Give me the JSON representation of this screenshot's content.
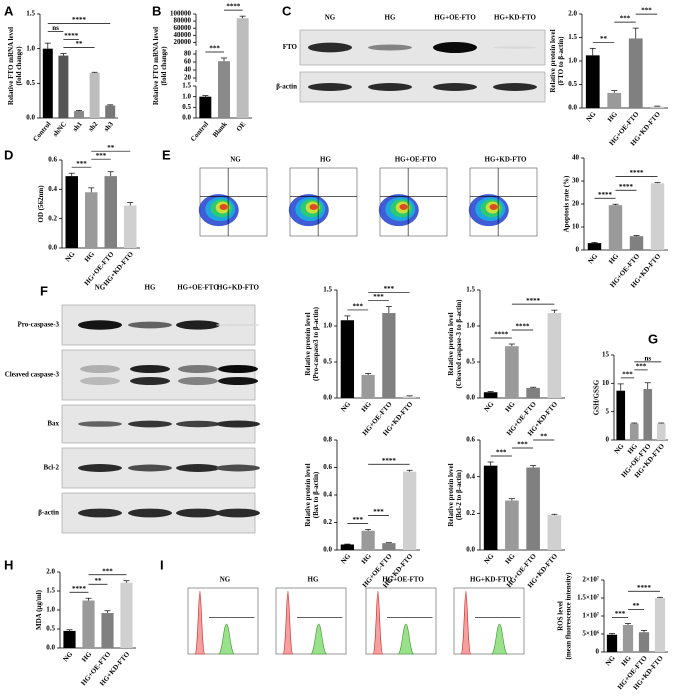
{
  "panel_labels": [
    "A",
    "B",
    "C",
    "D",
    "E",
    "F",
    "G",
    "H",
    "I"
  ],
  "blots": [
    {
      "columns": [
        "NG",
        "HG",
        "HG+OE-FTO",
        "HG+KD-FTO"
      ],
      "rows": [
        "FTO",
        "β-actin"
      ]
    },
    {
      "columns": [
        "NG",
        "HG",
        "HG+OE-FTO",
        "HG+KD-FTO"
      ],
      "rows": [
        "Pro-caspase-3",
        "Cleaved caspase-3",
        "Bax",
        "Bcl-2",
        "β-actin"
      ]
    }
  ],
  "flow_plots": [
    {
      "columns": [
        "NG",
        "HG",
        "HG+OE-FTO",
        "HG+KD-FTO"
      ]
    },
    {
      "columns": [
        "NG",
        "HG",
        "HG+OE-FTO",
        "HG+KD-FTO"
      ]
    }
  ],
  "chart_data": [
    {
      "type": "bar",
      "ylabel": [
        "Relative FTO mRNA level",
        "(fold change)"
      ],
      "categories": [
        "Control",
        "shNC",
        "sh1",
        "sh2",
        "sh3"
      ],
      "values": [
        1.0,
        0.9,
        0.1,
        0.65,
        0.18
      ],
      "errors": [
        0.08,
        0.03,
        0.01,
        0.01,
        0.01
      ],
      "colors": [
        "#000000",
        "#555555",
        "#8a8a8a",
        "#bdbdbd",
        "#777777"
      ],
      "ylim": [
        0,
        1.5
      ],
      "yticks": [
        {
          "value": 0,
          "label": "0.0"
        },
        0.5,
        {
          "value": 1,
          "label": "1.0"
        },
        1.5
      ],
      "brackets": [
        {
          "text": "**",
          "from": "shNC",
          "to": "sh2"
        },
        {
          "text": "****",
          "from": "shNC",
          "to": "sh1"
        },
        {
          "text": "ns",
          "from": "Control",
          "to": "shNC"
        },
        {
          "text": "****",
          "from": "Control",
          "to": "sh3"
        }
      ]
    },
    {
      "type": "bar",
      "ylabel": [
        "Relative FTO mRNA level",
        "(fold change)"
      ],
      "categories": [
        "Control",
        "Blank",
        "OE"
      ],
      "values": [
        1.0,
        62,
        88000
      ],
      "errors": [
        0.05,
        8,
        6000
      ],
      "colors": [
        "#000000",
        "#8a8a8a",
        "#bdbdbd"
      ],
      "y_segments": [
        {
          "ylim": [
            0,
            1.5
          ],
          "yticks": [
            {
              "value": 0,
              "label": "0.0"
            },
            0.5,
            {
              "value": 1,
              "label": "1.0"
            },
            1.5
          ]
        },
        {
          "ylim": [
            10,
            90
          ],
          "yticks": [
            20,
            40,
            60,
            80
          ]
        },
        {
          "ylim": [
            10000,
            100000
          ],
          "yticks": [
            20000,
            40000,
            60000,
            80000,
            100000
          ]
        }
      ],
      "brackets": [
        {
          "text": "***",
          "from": "Control",
          "to": "Blank"
        },
        {
          "text": "****",
          "from": "Blank",
          "to": "OE"
        }
      ]
    },
    {
      "type": "bar",
      "ylabel": [
        "Relative protein level",
        "(FTO to β-actin)"
      ],
      "categories": [
        "NG",
        "HG",
        "HG+OE-FTO",
        "HG+KD-FTO"
      ],
      "values": [
        1.12,
        0.32,
        1.48,
        0.03
      ],
      "errors": [
        0.15,
        0.05,
        0.22,
        0.01
      ],
      "colors": [
        "#000000",
        "#9a9a9a",
        "#808080",
        "#d0d0d0"
      ],
      "ylim": [
        0,
        2
      ],
      "yticks": [
        {
          "value": 0,
          "label": "0.0"
        },
        0.5,
        {
          "value": 1,
          "label": "1.0"
        },
        1.5,
        {
          "value": 2,
          "label": "2.0"
        }
      ],
      "brackets": [
        {
          "text": "**",
          "from": "NG",
          "to": "HG"
        },
        {
          "text": "***",
          "from": "HG",
          "to": "HG+OE-FTO"
        },
        {
          "text": "***",
          "from": "HG+OE-FTO",
          "to": "HG+KD-FTO"
        }
      ]
    },
    {
      "type": "bar",
      "ylabel": [
        "OD (562nm)"
      ],
      "categories": [
        "NG",
        "HG",
        "HG+OE-FTO",
        "HG+KD-FTO"
      ],
      "values": [
        0.49,
        0.38,
        0.49,
        0.29
      ],
      "errors": [
        0.02,
        0.03,
        0.03,
        0.02
      ],
      "colors": [
        "#000000",
        "#9a9a9a",
        "#808080",
        "#d0d0d0"
      ],
      "ylim": [
        0,
        0.6
      ],
      "yticks": [
        {
          "value": 0,
          "label": "0.0"
        },
        0.2,
        0.4,
        0.6
      ],
      "brackets": [
        {
          "text": "***",
          "from": "NG",
          "to": "HG"
        },
        {
          "text": "***",
          "from": "HG",
          "to": "HG+OE-FTO"
        },
        {
          "text": "**",
          "from": "HG",
          "to": "HG+KD-FTO"
        }
      ]
    },
    {
      "type": "bar",
      "ylabel": [
        "Apoptosis rate (%)"
      ],
      "categories": [
        "NG",
        "HG",
        "HG+OE-FTO",
        "HG+KD-FTO"
      ],
      "values": [
        3,
        19.5,
        6,
        29
      ],
      "errors": [
        0.3,
        0.4,
        0.3,
        0.3
      ],
      "colors": [
        "#000000",
        "#9a9a9a",
        "#808080",
        "#d0d0d0"
      ],
      "ylim": [
        0,
        40
      ],
      "yticks": [
        0,
        10,
        20,
        30,
        40
      ],
      "brackets": [
        {
          "text": "****",
          "from": "NG",
          "to": "HG"
        },
        {
          "text": "****",
          "from": "HG",
          "to": "HG+OE-FTO"
        },
        {
          "text": "****",
          "from": "HG",
          "to": "HG+KD-FTO"
        }
      ]
    },
    {
      "type": "bar",
      "ylabel": [
        "Relative protein level",
        "(Pro-caspase3 to β-actin)"
      ],
      "categories": [
        "NG",
        "HG",
        "HG+OE-FTO",
        "HG+KD-FTO"
      ],
      "values": [
        1.08,
        0.32,
        1.18,
        0.02
      ],
      "errors": [
        0.06,
        0.02,
        0.09,
        0.01
      ],
      "colors": [
        "#000000",
        "#9a9a9a",
        "#808080",
        "#d0d0d0"
      ],
      "ylim": [
        0,
        1.5
      ],
      "yticks": [
        {
          "value": 0,
          "label": "0.0"
        },
        0.5,
        {
          "value": 1,
          "label": "1.0"
        },
        1.5
      ],
      "brackets": [
        {
          "text": "***",
          "from": "NG",
          "to": "HG"
        },
        {
          "text": "***",
          "from": "HG",
          "to": "HG+OE-FTO"
        },
        {
          "text": "***",
          "from": "HG",
          "to": "HG+KD-FTO"
        }
      ]
    },
    {
      "type": "bar",
      "ylabel": [
        "Relative protein level",
        "(Cleaved caspase-3 to β-actin)"
      ],
      "categories": [
        "NG",
        "HG",
        "HG+OE-FTO",
        "HG+KD-FTO"
      ],
      "values": [
        0.08,
        0.72,
        0.14,
        1.18
      ],
      "errors": [
        0.01,
        0.03,
        0.01,
        0.04
      ],
      "colors": [
        "#000000",
        "#9a9a9a",
        "#808080",
        "#d0d0d0"
      ],
      "ylim": [
        0,
        1.5
      ],
      "yticks": [
        {
          "value": 0,
          "label": "0.0"
        },
        0.5,
        {
          "value": 1,
          "label": "1.0"
        },
        1.5
      ],
      "brackets": [
        {
          "text": "****",
          "from": "NG",
          "to": "HG"
        },
        {
          "text": "****",
          "from": "HG",
          "to": "HG+OE-FTO"
        },
        {
          "text": "****",
          "from": "HG",
          "to": "HG+KD-FTO"
        }
      ]
    },
    {
      "type": "bar",
      "ylabel": [
        "Relative protein level",
        "(Bax to β-actin)"
      ],
      "categories": [
        "NG",
        "HG",
        "HG+OE-FTO",
        "HG+KD-FTO"
      ],
      "values": [
        0.04,
        0.14,
        0.05,
        0.57
      ],
      "errors": [
        0.003,
        0.01,
        0.003,
        0.01
      ],
      "colors": [
        "#000000",
        "#9a9a9a",
        "#808080",
        "#d0d0d0"
      ],
      "ylim": [
        0,
        0.8
      ],
      "yticks": [
        {
          "value": 0,
          "label": "0.0"
        },
        0.2,
        0.4,
        0.6,
        0.8
      ],
      "brackets": [
        {
          "text": "***",
          "from": "NG",
          "to": "HG"
        },
        {
          "text": "***",
          "from": "HG",
          "to": "HG+OE-FTO"
        },
        {
          "text": "****",
          "from": "HG",
          "to": "HG+KD-FTO"
        }
      ]
    },
    {
      "type": "bar",
      "ylabel": [
        "Relative protein level",
        "(Bcl-2 to β-actin)"
      ],
      "categories": [
        "NG",
        "HG",
        "HG+OE-FTO",
        "HG+KD-FTO"
      ],
      "values": [
        0.46,
        0.27,
        0.45,
        0.19
      ],
      "errors": [
        0.02,
        0.01,
        0.01,
        0.005
      ],
      "colors": [
        "#000000",
        "#9a9a9a",
        "#808080",
        "#d0d0d0"
      ],
      "ylim": [
        0,
        0.6
      ],
      "yticks": [
        {
          "value": 0,
          "label": "0.0"
        },
        0.2,
        0.4,
        0.6
      ],
      "brackets": [
        {
          "text": "***",
          "from": "NG",
          "to": "HG"
        },
        {
          "text": "***",
          "from": "HG",
          "to": "HG+OE-FTO"
        },
        {
          "text": "**",
          "from": "HG+OE-FTO",
          "to": "HG+KD-FTO"
        }
      ]
    },
    {
      "type": "bar",
      "ylabel": [
        "GSH/GSSG"
      ],
      "categories": [
        "NG",
        "HG",
        "HG+OE-FTO",
        "HG+KD-FTO"
      ],
      "values": [
        8.7,
        2.9,
        9.0,
        2.9
      ],
      "errors": [
        1.2,
        0.1,
        1.1,
        0.1
      ],
      "colors": [
        "#000000",
        "#9a9a9a",
        "#808080",
        "#d0d0d0"
      ],
      "ylim": [
        0,
        15
      ],
      "yticks": [
        0,
        5,
        10,
        15
      ],
      "brackets": [
        {
          "text": "***",
          "from": "NG",
          "to": "HG"
        },
        {
          "text": "***",
          "from": "HG",
          "to": "HG+OE-FTO"
        },
        {
          "text": "ns",
          "from": "HG",
          "to": "HG+KD-FTO"
        }
      ]
    },
    {
      "type": "bar",
      "ylabel": [
        "MDA (μg/ml)"
      ],
      "categories": [
        "NG",
        "HG",
        "HG+OE-FTO",
        "HG+KD-FTO"
      ],
      "values": [
        0.45,
        1.25,
        0.92,
        1.72
      ],
      "errors": [
        0.03,
        0.06,
        0.06,
        0.05
      ],
      "colors": [
        "#000000",
        "#9a9a9a",
        "#808080",
        "#d0d0d0"
      ],
      "ylim": [
        0,
        2
      ],
      "yticks": [
        {
          "value": 0,
          "label": "0.0"
        },
        0.5,
        {
          "value": 1,
          "label": "1.0"
        },
        1.5,
        {
          "value": 2,
          "label": "2.0"
        }
      ],
      "brackets": [
        {
          "text": "****",
          "from": "NG",
          "to": "HG"
        },
        {
          "text": "**",
          "from": "HG",
          "to": "HG+OE-FTO"
        },
        {
          "text": "***",
          "from": "HG",
          "to": "HG+KD-FTO"
        }
      ]
    },
    {
      "type": "bar",
      "ylabel": [
        "ROS level",
        "(mean fluorescence intensity)"
      ],
      "categories": [
        "NG",
        "HG",
        "HG+OE-FTO",
        "HG+KD-FTO"
      ],
      "values": [
        4800000,
        7500000,
        5500000,
        15000000
      ],
      "errors": [
        300000,
        400000,
        500000,
        200000
      ],
      "colors": [
        "#000000",
        "#9a9a9a",
        "#808080",
        "#d0d0d0"
      ],
      "ylim": [
        0,
        20000000
      ],
      "yticks": [
        0,
        {
          "value": 5000000,
          "label": "5×10⁶"
        },
        {
          "value": 10000000,
          "label": "1×10⁷"
        },
        {
          "value": 15000000,
          "label": "1.5×10⁷"
        },
        {
          "value": 20000000,
          "label": "2×10⁷"
        }
      ],
      "brackets": [
        {
          "text": "***",
          "from": "NG",
          "to": "HG"
        },
        {
          "text": "**",
          "from": "HG",
          "to": "HG+OE-FTO"
        },
        {
          "text": "****",
          "from": "HG",
          "to": "HG+KD-FTO"
        }
      ]
    }
  ]
}
